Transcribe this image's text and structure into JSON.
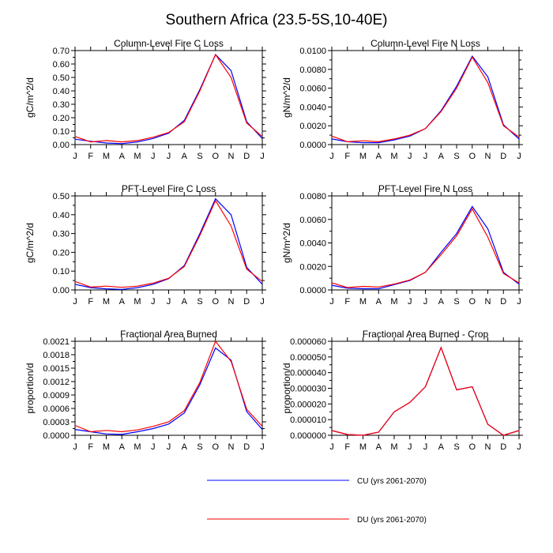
{
  "title": "Southern Africa (23.5-5S,10-40E)",
  "months": [
    "J",
    "F",
    "M",
    "A",
    "M",
    "J",
    "J",
    "A",
    "S",
    "O",
    "N",
    "D",
    "J"
  ],
  "legend": [
    {
      "label": "CU (yrs 2061-2070)",
      "color": "#0000ff"
    },
    {
      "label": "DU (yrs 2061-2070)",
      "color": "#ff0000"
    }
  ],
  "chart_data": [
    {
      "type": "line",
      "title": "Column-Level Fire C Loss",
      "ylabel": "gC/m^2/d",
      "ylim": [
        0,
        0.7
      ],
      "yticks": [
        "0.00",
        "0.10",
        "0.20",
        "0.30",
        "0.40",
        "0.50",
        "0.60",
        "0.70"
      ],
      "series": [
        {
          "name": "CU (yrs 2061-2070)",
          "color": "#0000ff",
          "values": [
            0.04,
            0.025,
            0.012,
            0.007,
            0.02,
            0.045,
            0.085,
            0.18,
            0.41,
            0.67,
            0.55,
            0.17,
            0.045
          ]
        },
        {
          "name": "DU (yrs 2061-2070)",
          "color": "#ff0000",
          "values": [
            0.06,
            0.02,
            0.03,
            0.02,
            0.03,
            0.055,
            0.09,
            0.17,
            0.4,
            0.67,
            0.5,
            0.16,
            0.06
          ]
        }
      ]
    },
    {
      "type": "line",
      "title": "Column-Level Fire N Loss",
      "ylabel": "gN/m^2/d",
      "ylim": [
        0,
        0.01
      ],
      "yticks": [
        "0.0000",
        "0.0020",
        "0.0040",
        "0.0060",
        "0.0080",
        "0.0100"
      ],
      "series": [
        {
          "name": "CU (yrs 2061-2070)",
          "color": "#0000ff",
          "values": [
            0.0006,
            0.0003,
            0.0002,
            0.0002,
            0.0005,
            0.0009,
            0.0017,
            0.0036,
            0.0062,
            0.0094,
            0.0072,
            0.0021,
            0.0006
          ]
        },
        {
          "name": "DU (yrs 2061-2070)",
          "color": "#ff0000",
          "values": [
            0.0009,
            0.0003,
            0.0004,
            0.0003,
            0.0006,
            0.001,
            0.0017,
            0.0035,
            0.006,
            0.0093,
            0.0066,
            0.002,
            0.0008
          ]
        }
      ]
    },
    {
      "type": "line",
      "title": "PFT-Level Fire C Loss",
      "ylabel": "gC/m^2/d",
      "ylim": [
        0,
        0.5
      ],
      "yticks": [
        "0.00",
        "0.10",
        "0.20",
        "0.30",
        "0.40",
        "0.50"
      ],
      "series": [
        {
          "name": "CU (yrs 2061-2070)",
          "color": "#0000ff",
          "values": [
            0.03,
            0.012,
            0.006,
            0.003,
            0.012,
            0.03,
            0.06,
            0.13,
            0.3,
            0.485,
            0.4,
            0.12,
            0.03
          ]
        },
        {
          "name": "DU (yrs 2061-2070)",
          "color": "#ff0000",
          "values": [
            0.045,
            0.015,
            0.02,
            0.014,
            0.02,
            0.036,
            0.062,
            0.125,
            0.29,
            0.475,
            0.34,
            0.11,
            0.045
          ]
        }
      ]
    },
    {
      "type": "line",
      "title": "PFT-Level Fire N Loss",
      "ylabel": "gN/m^2/d",
      "ylim": [
        0,
        0.008
      ],
      "yticks": [
        "0.0000",
        "0.0020",
        "0.0040",
        "0.0060",
        "0.0080"
      ],
      "series": [
        {
          "name": "CU (yrs 2061-2070)",
          "color": "#0000ff",
          "values": [
            0.0004,
            0.00015,
            0.0001,
            0.0001,
            0.00045,
            0.0008,
            0.0015,
            0.0032,
            0.0048,
            0.0071,
            0.0052,
            0.0015,
            0.0005
          ]
        },
        {
          "name": "DU (yrs 2061-2070)",
          "color": "#ff0000",
          "values": [
            0.0006,
            0.0002,
            0.0003,
            0.00025,
            0.0005,
            0.00085,
            0.0015,
            0.003,
            0.0046,
            0.0069,
            0.0045,
            0.0014,
            0.0006
          ]
        }
      ]
    },
    {
      "type": "line",
      "title": "Fractional Area Burned",
      "ylabel": "proportion/d",
      "ylim": [
        0,
        0.0021
      ],
      "yticks": [
        "0.0000",
        "0.0003",
        "0.0006",
        "0.0009",
        "0.0012",
        "0.0015",
        "0.0018",
        "0.0021"
      ],
      "series": [
        {
          "name": "CU (yrs 2061-2070)",
          "color": "#0000ff",
          "values": [
            0.00013,
            8e-05,
            3e-05,
            2e-05,
            8e-05,
            0.00015,
            0.00025,
            0.0005,
            0.00113,
            0.00195,
            0.00168,
            0.00053,
            0.00013
          ]
        },
        {
          "name": "DU (yrs 2061-2070)",
          "color": "#ff0000",
          "values": [
            0.00022,
            8e-05,
            0.00011,
            8e-05,
            0.00012,
            0.0002,
            0.0003,
            0.00055,
            0.00118,
            0.0021,
            0.00165,
            0.00058,
            0.0002
          ]
        }
      ]
    },
    {
      "type": "line",
      "title": "Fractional Area Burned - Crop",
      "ylabel": "proportion/d",
      "ylim": [
        0,
        6e-05
      ],
      "yticks": [
        "0.000000",
        "0.000010",
        "0.000020",
        "0.000030",
        "0.000040",
        "0.000050",
        "0.000060"
      ],
      "series": [
        {
          "name": "CU (yrs 2061-2070)",
          "color": "#0000ff",
          "values": [
            3e-06,
            5e-07,
            0.0,
            2e-06,
            1.5e-05,
            2.1e-05,
            3.1e-05,
            5.6e-05,
            2.9e-05,
            3.1e-05,
            7e-06,
            0.0,
            3e-06
          ]
        },
        {
          "name": "DU (yrs 2061-2070)",
          "color": "#ff0000",
          "values": [
            3e-06,
            5e-07,
            0.0,
            2e-06,
            1.5e-05,
            2.1e-05,
            3.1e-05,
            5.6e-05,
            2.9e-05,
            3.1e-05,
            7e-06,
            0.0,
            3e-06
          ]
        }
      ]
    }
  ]
}
